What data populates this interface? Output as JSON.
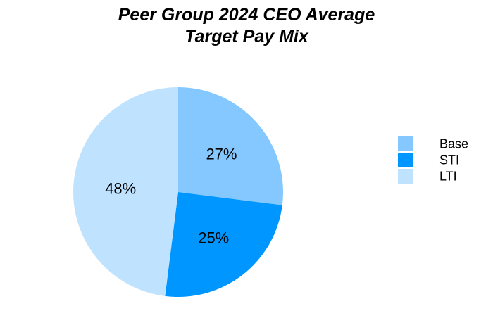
{
  "chart_data": {
    "type": "pie",
    "title_lines": [
      "Peer Group 2024 CEO Average",
      "Target Pay Mix"
    ],
    "title": "Peer Group 2024 CEO Average Target Pay Mix",
    "categories": [
      "Base",
      "STI",
      "LTI"
    ],
    "values": [
      27,
      25,
      48
    ],
    "data_labels": [
      "27%",
      "25%",
      "48%"
    ],
    "colors": [
      "#85C8FF",
      "#0096FF",
      "#BFE3FF"
    ],
    "start_angle": "12 o'clock",
    "direction": "clockwise",
    "legend": {
      "position": "right",
      "entries": [
        "Base",
        "STI",
        "LTI"
      ]
    }
  }
}
